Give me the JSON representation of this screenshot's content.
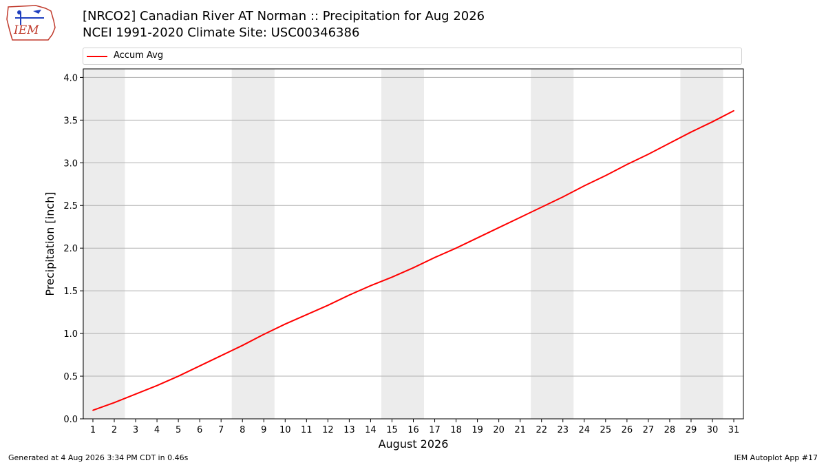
{
  "header": {
    "logo_text": "IEM",
    "title_line1": "[NRCO2] Canadian River  AT Norman :: Precipitation for Aug 2026",
    "title_line2": "NCEI 1991-2020 Climate Site: USC00346386"
  },
  "colors": {
    "series": "#ff0000",
    "weekend_band": "#ececec",
    "grid": "#b0b0b0",
    "logo": "#c0392b"
  },
  "chart_data": {
    "type": "line",
    "xlabel": "August 2026",
    "ylabel": "Precipitation [inch]",
    "xlim": [
      0.55,
      31.45
    ],
    "ylim": [
      0,
      4.1
    ],
    "x_ticks": [
      1,
      2,
      3,
      4,
      5,
      6,
      7,
      8,
      9,
      10,
      11,
      12,
      13,
      14,
      15,
      16,
      17,
      18,
      19,
      20,
      21,
      22,
      23,
      24,
      25,
      26,
      27,
      28,
      29,
      30,
      31
    ],
    "y_ticks": [
      0.0,
      0.5,
      1.0,
      1.5,
      2.0,
      2.5,
      3.0,
      3.5,
      4.0
    ],
    "y_tick_labels": [
      "0.0",
      "0.5",
      "1.0",
      "1.5",
      "2.0",
      "2.5",
      "3.0",
      "3.5",
      "4.0"
    ],
    "grid": "horizontal",
    "legend_position": "top",
    "weekend_bands": [
      [
        1,
        2
      ],
      [
        8,
        9
      ],
      [
        15,
        16
      ],
      [
        22,
        23
      ],
      [
        29,
        30
      ]
    ],
    "series": [
      {
        "name": "Accum Avg",
        "x": [
          1,
          2,
          3,
          4,
          5,
          6,
          7,
          8,
          9,
          10,
          11,
          12,
          13,
          14,
          15,
          16,
          17,
          18,
          19,
          20,
          21,
          22,
          23,
          24,
          25,
          26,
          27,
          28,
          29,
          30,
          31
        ],
        "values": [
          0.1,
          0.19,
          0.29,
          0.39,
          0.5,
          0.62,
          0.74,
          0.86,
          0.99,
          1.11,
          1.22,
          1.33,
          1.45,
          1.56,
          1.66,
          1.77,
          1.89,
          2.0,
          2.12,
          2.24,
          2.36,
          2.48,
          2.6,
          2.73,
          2.85,
          2.98,
          3.1,
          3.23,
          3.36,
          3.48,
          3.61
        ]
      }
    ]
  },
  "footer": {
    "left": "Generated at 4 Aug 2026 3:34 PM CDT in 0.46s",
    "right": "IEM Autoplot App #17"
  }
}
